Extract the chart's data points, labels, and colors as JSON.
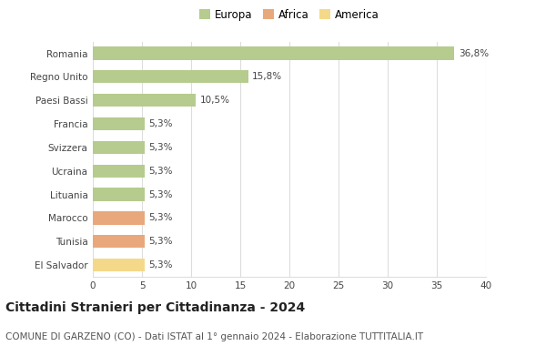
{
  "categories": [
    "Romania",
    "Regno Unito",
    "Paesi Bassi",
    "Francia",
    "Svizzera",
    "Ucraina",
    "Lituania",
    "Marocco",
    "Tunisia",
    "El Salvador"
  ],
  "values": [
    36.8,
    15.8,
    10.5,
    5.3,
    5.3,
    5.3,
    5.3,
    5.3,
    5.3,
    5.3
  ],
  "labels": [
    "36,8%",
    "15,8%",
    "10,5%",
    "5,3%",
    "5,3%",
    "5,3%",
    "5,3%",
    "5,3%",
    "5,3%",
    "5,3%"
  ],
  "colors": [
    "#b5cc8e",
    "#b5cc8e",
    "#b5cc8e",
    "#b5cc8e",
    "#b5cc8e",
    "#b5cc8e",
    "#b5cc8e",
    "#e8a87c",
    "#e8a87c",
    "#f5d98a"
  ],
  "legend_labels": [
    "Europa",
    "Africa",
    "America"
  ],
  "legend_colors": [
    "#b5cc8e",
    "#e8a87c",
    "#f5d98a"
  ],
  "title": "Cittadini Stranieri per Cittadinanza - 2024",
  "subtitle": "COMUNE DI GARZENO (CO) - Dati ISTAT al 1° gennaio 2024 - Elaborazione TUTTITALIA.IT",
  "xlim": [
    0,
    40
  ],
  "xticks": [
    0,
    5,
    10,
    15,
    20,
    25,
    30,
    35,
    40
  ],
  "bg_color": "#ffffff",
  "grid_color": "#dddddd",
  "bar_height": 0.55,
  "label_fontsize": 7.5,
  "title_fontsize": 10,
  "subtitle_fontsize": 7.5,
  "tick_fontsize": 7.5,
  "legend_fontsize": 8.5
}
